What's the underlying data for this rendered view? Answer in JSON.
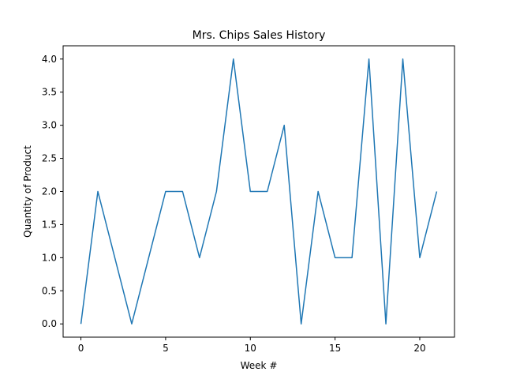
{
  "chart_data": {
    "type": "line",
    "title": "Mrs. Chips Sales History",
    "xlabel": "Week #",
    "ylabel": "Quantity of Product",
    "xlim": [
      -1.05,
      22.05
    ],
    "ylim": [
      -0.2,
      4.2
    ],
    "xticks": [
      0,
      5,
      10,
      15,
      20
    ],
    "xtick_labels": [
      "0",
      "5",
      "10",
      "15",
      "20"
    ],
    "yticks": [
      0.0,
      0.5,
      1.0,
      1.5,
      2.0,
      2.5,
      3.0,
      3.5,
      4.0
    ],
    "ytick_labels": [
      "0.0",
      "0.5",
      "1.0",
      "1.5",
      "2.0",
      "2.5",
      "3.0",
      "3.5",
      "4.0"
    ],
    "grid": false,
    "series": [
      {
        "color": "#1f77b4",
        "x": [
          0,
          1,
          2,
          3,
          4,
          5,
          6,
          7,
          8,
          9,
          10,
          11,
          12,
          13,
          14,
          15,
          16,
          17,
          18,
          19,
          20,
          21
        ],
        "values": [
          0,
          2,
          1,
          0,
          1,
          2,
          2,
          1,
          2,
          4,
          2,
          2,
          3,
          0,
          2,
          1,
          1,
          4,
          0,
          4,
          1,
          2
        ]
      }
    ]
  }
}
